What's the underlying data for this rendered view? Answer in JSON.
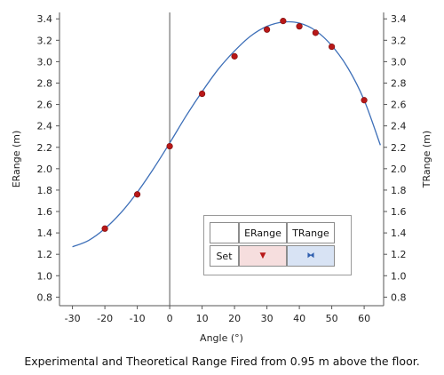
{
  "chart_data": {
    "type": "scatter",
    "title": "Experimental and Theoretical Range Fired from 0.95 m above the floor.",
    "xlabel": "Angle (°)",
    "ylabel_left": "ERange (m)",
    "ylabel_right": "TRange (m)",
    "xlim": [
      -34,
      66
    ],
    "ylim": [
      0.72,
      3.46
    ],
    "xticks": [
      -30,
      -20,
      -10,
      0,
      10,
      20,
      30,
      40,
      50,
      60
    ],
    "yticks": [
      0.8,
      1.0,
      1.2,
      1.4,
      1.6,
      1.8,
      2.0,
      2.2,
      2.4,
      2.6,
      2.8,
      3.0,
      3.2,
      3.4
    ],
    "xtick_labels": [
      "-30",
      "-20",
      "-10",
      "0",
      "10",
      "20",
      "30",
      "40",
      "50",
      "60"
    ],
    "ytick_labels": [
      "0.8",
      "1.0",
      "1.2",
      "1.4",
      "1.6",
      "1.8",
      "2.0",
      "2.2",
      "2.4",
      "2.6",
      "2.8",
      "3.0",
      "3.2",
      "3.4"
    ],
    "series": [
      {
        "name": "ERange",
        "kind": "points",
        "color": "#b81818",
        "x": [
          -20,
          -10,
          0,
          10,
          20,
          30,
          35,
          40,
          45,
          50,
          60
        ],
        "y": [
          1.44,
          1.76,
          2.21,
          2.7,
          3.05,
          3.3,
          3.38,
          3.33,
          3.27,
          3.14,
          2.64
        ]
      },
      {
        "name": "TRange",
        "kind": "curve",
        "color": "#3d6fb8",
        "x": [
          -30,
          -25,
          -20,
          -15,
          -10,
          -5,
          0,
          5,
          10,
          15,
          20,
          25,
          30,
          35,
          40,
          45,
          50,
          55,
          60,
          65
        ],
        "y": [
          1.27,
          1.33,
          1.44,
          1.59,
          1.78,
          2.0,
          2.24,
          2.49,
          2.72,
          2.93,
          3.1,
          3.24,
          3.33,
          3.37,
          3.36,
          3.29,
          3.15,
          2.94,
          2.64,
          2.22
        ]
      }
    ],
    "grid": false,
    "legend_position": "bottom-right"
  },
  "legend": {
    "header_erange": "ERange",
    "header_trange": "TRange",
    "row_label": "Set",
    "erange_symbol": "▼",
    "trange_symbol": "⧓"
  }
}
